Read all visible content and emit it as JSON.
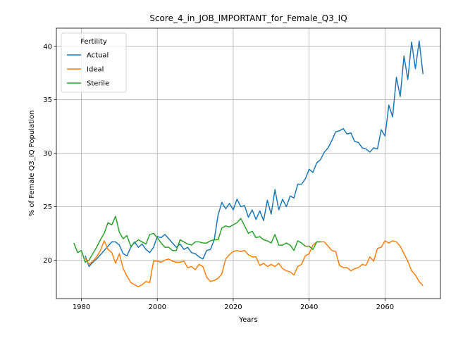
{
  "chart_data": {
    "type": "line",
    "title": "Score_4_in_JOB_IMPORTANT_for_Female_Q3_IQ",
    "xlabel": "Years",
    "ylabel": "% of Female Q3_IQ Population",
    "xlim": [
      1973.4,
      2074.6
    ],
    "ylim": [
      16.4,
      41.7
    ],
    "xticks": [
      1980,
      2000,
      2020,
      2040,
      2060
    ],
    "yticks": [
      20,
      25,
      30,
      35,
      40
    ],
    "grid": true,
    "legend": {
      "title": "Fertility",
      "position": "top-left"
    },
    "series": [
      {
        "name": "Actual",
        "color": "#1f77b4",
        "x": [
          1981,
          1982,
          1983,
          1984,
          1985,
          1986,
          1987,
          1988,
          1989,
          1990,
          1991,
          1992,
          1993,
          1994,
          1995,
          1996,
          1997,
          1998,
          1999,
          2000,
          2001,
          2002,
          2003,
          2004,
          2005,
          2006,
          2007,
          2008,
          2009,
          2010,
          2011,
          2012,
          2013,
          2014,
          2015,
          2016,
          2017,
          2018,
          2019,
          2020,
          2021,
          2022,
          2023,
          2024,
          2025,
          2026,
          2027,
          2028,
          2029,
          2030,
          2031,
          2032,
          2033,
          2034,
          2035,
          2036,
          2037,
          2038,
          2039,
          2040,
          2041,
          2042,
          2043,
          2044,
          2045,
          2046,
          2047,
          2048,
          2049,
          2050,
          2051,
          2052,
          2053,
          2054,
          2055,
          2056,
          2057,
          2058,
          2059,
          2060,
          2061,
          2062,
          2063,
          2064,
          2065,
          2066,
          2067,
          2068,
          2069,
          2070
        ],
        "y": [
          20.4,
          19.4,
          19.8,
          20.1,
          20.5,
          20.9,
          21.3,
          21.7,
          21.7,
          21.4,
          20.6,
          20.4,
          21.2,
          21.7,
          21.2,
          21.5,
          21.0,
          20.7,
          21.2,
          22.2,
          22.1,
          22.4,
          22.0,
          21.6,
          21.2,
          21.5,
          21.0,
          21.2,
          20.7,
          20.6,
          20.3,
          20.1,
          20.9,
          21.0,
          21.9,
          24.2,
          25.4,
          24.8,
          25.3,
          24.7,
          25.7,
          25.0,
          25.1,
          24.0,
          24.7,
          23.8,
          24.6,
          23.7,
          25.6,
          24.3,
          26.6,
          24.7,
          25.7,
          25.0,
          26.0,
          25.8,
          27.1,
          27.1,
          27.6,
          28.5,
          28.2,
          29.1,
          29.4,
          30.1,
          30.5,
          31.2,
          32.0,
          32.1,
          32.3,
          31.8,
          31.9,
          31.1,
          31.0,
          30.5,
          30.4,
          30.1,
          30.5,
          30.4,
          32.2,
          31.6,
          34.5,
          33.4,
          37.1,
          35.3,
          39.1,
          36.9,
          40.4,
          37.9,
          40.5,
          37.4
        ]
      },
      {
        "name": "Ideal",
        "color": "#ff7f0e",
        "x": [
          1981,
          1982,
          1983,
          1984,
          1985,
          1986,
          1987,
          1988,
          1989,
          1990,
          1991,
          1992,
          1993,
          1994,
          1995,
          1996,
          1997,
          1998,
          1999,
          2000,
          2001,
          2002,
          2003,
          2004,
          2005,
          2006,
          2007,
          2008,
          2009,
          2010,
          2011,
          2012,
          2013,
          2014,
          2015,
          2016,
          2017,
          2018,
          2019,
          2020,
          2021,
          2022,
          2023,
          2024,
          2025,
          2026,
          2027,
          2028,
          2029,
          2030,
          2031,
          2032,
          2033,
          2034,
          2035,
          2036,
          2037,
          2038,
          2039,
          2040,
          2041,
          2042,
          2043,
          2044,
          2045,
          2046,
          2047,
          2048,
          2049,
          2050,
          2051,
          2052,
          2053,
          2054,
          2055,
          2056,
          2057,
          2058,
          2059,
          2060,
          2061,
          2062,
          2063,
          2064,
          2065,
          2066,
          2067,
          2068,
          2069,
          2070
        ],
        "y": [
          20.2,
          19.6,
          19.9,
          20.3,
          20.9,
          21.8,
          21.0,
          20.7,
          19.7,
          20.6,
          19.2,
          18.5,
          17.9,
          17.7,
          17.5,
          17.7,
          18.0,
          17.9,
          19.9,
          19.9,
          19.8,
          20.0,
          20.1,
          19.9,
          19.8,
          19.8,
          19.9,
          19.3,
          19.4,
          19.1,
          19.6,
          19.4,
          18.4,
          18.0,
          18.1,
          18.3,
          18.7,
          20.1,
          20.5,
          20.8,
          20.9,
          20.8,
          20.9,
          20.5,
          20.3,
          20.3,
          19.5,
          19.7,
          19.4,
          19.6,
          19.4,
          19.7,
          19.2,
          19.0,
          18.9,
          18.6,
          19.4,
          19.6,
          20.4,
          20.6,
          21.4,
          21.7,
          21.7,
          21.7,
          21.3,
          20.9,
          20.8,
          19.5,
          19.3,
          19.3,
          19.0,
          19.2,
          19.3,
          19.6,
          19.5,
          20.3,
          19.9,
          21.1,
          21.2,
          21.8,
          21.6,
          21.8,
          21.7,
          21.3,
          20.6,
          19.9,
          19.0,
          18.6,
          18.0,
          17.6
        ]
      },
      {
        "name": "Sterile",
        "color": "#2ca02c",
        "x": [
          1978,
          1979,
          1980,
          1981,
          1982,
          1983,
          1984,
          1985,
          1986,
          1987,
          1988,
          1989,
          1990,
          1991,
          1992,
          1993,
          1994,
          1995,
          1996,
          1997,
          1998,
          1999,
          2000,
          2001,
          2002,
          2003,
          2004,
          2005,
          2006,
          2007,
          2008,
          2009,
          2010,
          2011,
          2012,
          2013,
          2014,
          2015,
          2016,
          2017,
          2018,
          2019,
          2020,
          2021,
          2022,
          2023,
          2024,
          2025,
          2026,
          2027,
          2028,
          2029,
          2030,
          2031,
          2032,
          2033,
          2034,
          2035,
          2036,
          2037,
          2038,
          2039,
          2040,
          2041,
          2042,
          2043
        ],
        "y": [
          21.6,
          20.7,
          20.9,
          19.8,
          20.0,
          20.6,
          21.2,
          21.9,
          22.5,
          23.5,
          23.3,
          24.1,
          22.6,
          22.0,
          22.3,
          21.3,
          21.6,
          21.9,
          21.7,
          21.5,
          22.4,
          22.5,
          22.1,
          21.6,
          21.2,
          21.2,
          20.9,
          20.9,
          21.9,
          21.7,
          21.5,
          21.4,
          21.7,
          21.7,
          21.6,
          21.6,
          21.8,
          21.9,
          21.9,
          23.0,
          23.2,
          23.1,
          23.3,
          23.5,
          23.9,
          23.2,
          22.5,
          22.7,
          22.1,
          22.2,
          21.9,
          21.8,
          21.6,
          22.4,
          21.4,
          21.4,
          21.6,
          21.4,
          20.9,
          21.8,
          21.6,
          21.3,
          21.3,
          21.0,
          21.7,
          21.7
        ]
      }
    ]
  }
}
